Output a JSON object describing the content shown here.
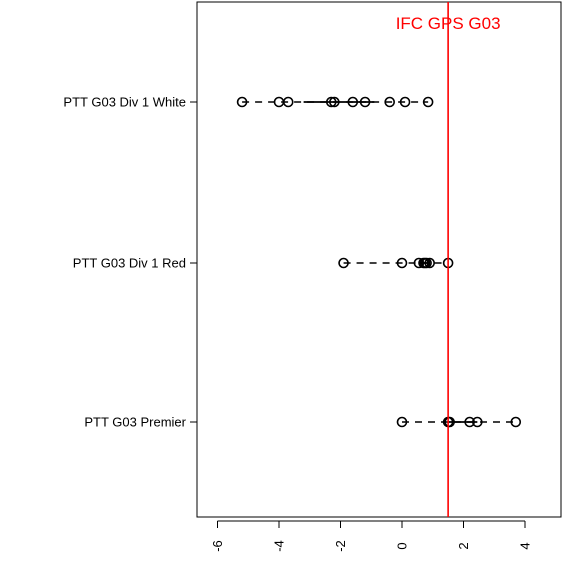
{
  "chart_data": {
    "type": "scatter",
    "title": "",
    "xlabel": "",
    "ylabel": "",
    "xlim": [
      -6.7,
      5.1
    ],
    "xticks": [
      -6,
      -4,
      -2,
      0,
      2,
      4
    ],
    "xtick_labels": [
      "-6",
      "-4",
      "-2",
      "0",
      "2",
      "4"
    ],
    "grid": false,
    "categories": [
      "PTT G03 Div 1 White",
      "PTT G03 Div 1 Red",
      "PTT G03 Premier"
    ],
    "series": [
      {
        "category": "PTT G03 Div 1 White",
        "points": [
          -5.2,
          -4.0,
          -3.7,
          -2.3,
          -2.2,
          -1.6,
          -1.2,
          -0.4,
          0.1,
          0.85
        ],
        "range": [
          -5.2,
          0.85
        ],
        "solid_segment": [
          -3.2,
          -0.9
        ]
      },
      {
        "category": "PTT G03 Div 1 Red",
        "points": [
          -1.9,
          0.0,
          0.55,
          0.7,
          0.75,
          0.8,
          0.9,
          1.5
        ],
        "range": [
          -1.9,
          1.5
        ],
        "solid_segment": [
          0.55,
          0.9
        ]
      },
      {
        "category": "PTT G03 Premier",
        "points": [
          0.0,
          1.5,
          1.55,
          2.2,
          2.45,
          3.7
        ],
        "range": [
          0.0,
          3.7
        ],
        "solid_segment": [
          1.5,
          2.45
        ]
      }
    ],
    "reference_line": {
      "x": 1.5,
      "label": "IFC GPS G03",
      "color": "#ff0000"
    }
  }
}
